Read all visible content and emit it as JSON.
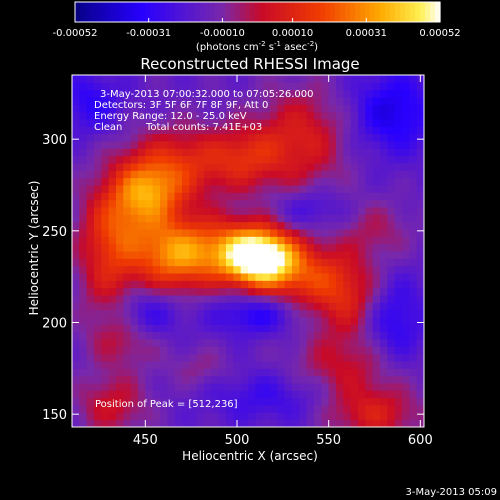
{
  "chart_data": {
    "type": "heatmap",
    "title": "Reconstructed RHESSI Image",
    "xlabel": "Heliocentric X (arcsec)",
    "ylabel": "Heliocentric Y (arcsec)",
    "xlim": [
      410,
      602
    ],
    "ylim": [
      143,
      335
    ],
    "xticks": [
      450,
      500,
      550,
      600
    ],
    "yticks": [
      150,
      200,
      250,
      300
    ],
    "colorbar": {
      "range": [
        -0.00052,
        0.00052
      ],
      "ticks": [
        "-0.00052",
        "-0.00031",
        "-0.00010",
        "0.00010",
        "0.00031",
        "0.00052"
      ],
      "label_parts": [
        "(photons cm",
        "-2",
        " s",
        "-1",
        " asec",
        "-2",
        ")"
      ]
    },
    "annotations": {
      "time": "3-May-2013 07:00:32.000 to 07:05:26.000",
      "detectors": "Detectors: 3F 5F 6F 7F 8F 9F, Att 0",
      "energy": "Energy Range: 12.0 - 25.0 keV",
      "clean": "Clean",
      "counts": "Total counts: 7.41E+03",
      "peak": "Position of Peak = [512,236]"
    },
    "peak": {
      "x": 512,
      "y": 236
    },
    "blobs": [
      {
        "x": 512,
        "y": 236,
        "sx": 13,
        "sy": 10,
        "a": 1.0
      },
      {
        "x": 490,
        "y": 240,
        "sx": 24,
        "sy": 13,
        "a": 0.55
      },
      {
        "x": 535,
        "y": 226,
        "sx": 20,
        "sy": 12,
        "a": 0.45
      },
      {
        "x": 452,
        "y": 272,
        "sx": 14,
        "sy": 12,
        "a": 0.55
      },
      {
        "x": 470,
        "y": 288,
        "sx": 22,
        "sy": 14,
        "a": 0.4
      },
      {
        "x": 440,
        "y": 255,
        "sx": 16,
        "sy": 16,
        "a": 0.35
      },
      {
        "x": 430,
        "y": 230,
        "sx": 12,
        "sy": 25,
        "a": 0.35
      },
      {
        "x": 465,
        "y": 235,
        "sx": 14,
        "sy": 14,
        "a": 0.45
      },
      {
        "x": 560,
        "y": 212,
        "sx": 14,
        "sy": 14,
        "a": 0.35
      },
      {
        "x": 535,
        "y": 300,
        "sx": 18,
        "sy": 20,
        "a": 0.38
      },
      {
        "x": 505,
        "y": 290,
        "sx": 14,
        "sy": 12,
        "a": 0.3
      },
      {
        "x": 560,
        "y": 175,
        "sx": 22,
        "sy": 14,
        "a": 0.3
      },
      {
        "x": 575,
        "y": 150,
        "sx": 18,
        "sy": 10,
        "a": 0.35
      },
      {
        "x": 432,
        "y": 155,
        "sx": 14,
        "sy": 12,
        "a": 0.3
      },
      {
        "x": 440,
        "y": 190,
        "sx": 14,
        "sy": 10,
        "a": 0.2
      },
      {
        "x": 480,
        "y": 175,
        "sx": 12,
        "sy": 8,
        "a": 0.15
      },
      {
        "x": 575,
        "y": 250,
        "sx": 15,
        "sy": 12,
        "a": 0.2
      },
      {
        "x": 510,
        "y": 205,
        "sx": 16,
        "sy": 8,
        "a": -0.3
      },
      {
        "x": 450,
        "y": 205,
        "sx": 14,
        "sy": 10,
        "a": -0.25
      },
      {
        "x": 585,
        "y": 315,
        "sx": 16,
        "sy": 16,
        "a": -0.35
      },
      {
        "x": 585,
        "y": 200,
        "sx": 12,
        "sy": 18,
        "a": -0.3
      },
      {
        "x": 520,
        "y": 160,
        "sx": 25,
        "sy": 10,
        "a": -0.2
      },
      {
        "x": 420,
        "y": 320,
        "sx": 12,
        "sy": 12,
        "a": -0.25
      },
      {
        "x": 540,
        "y": 262,
        "sx": 14,
        "sy": 8,
        "a": -0.2
      }
    ]
  },
  "footer": {
    "date": "3-May-2013 05:09"
  }
}
